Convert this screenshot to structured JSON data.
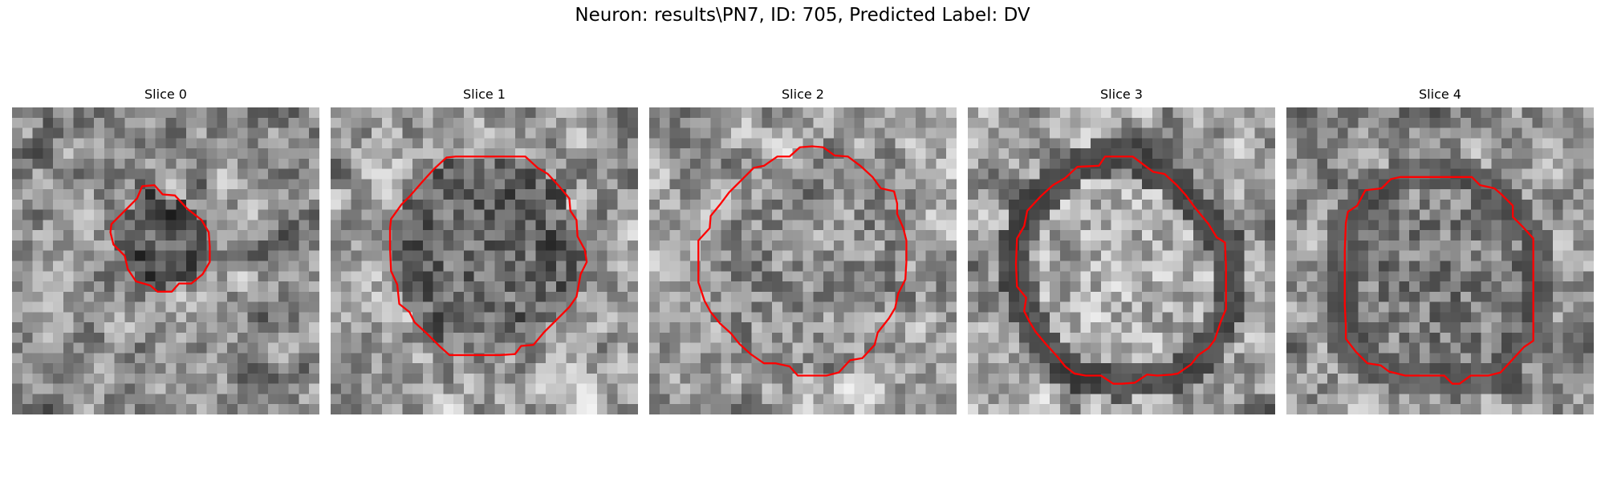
{
  "figure": {
    "title": "Neuron: results\\PN7, ID: 705, Predicted Label: DV",
    "contour_color": "#ff0000"
  },
  "panels": [
    {
      "title": "Slice 0",
      "seed": 11,
      "base": 0.55,
      "center_tone": 0.22,
      "ring_tone": null
    },
    {
      "title": "Slice 1",
      "seed": 23,
      "base": 0.62,
      "center_tone": 0.3,
      "ring_tone": null
    },
    {
      "title": "Slice 2",
      "seed": 37,
      "base": 0.62,
      "center_tone": 0.52,
      "ring_tone": null
    },
    {
      "title": "Slice 3",
      "seed": 41,
      "base": 0.62,
      "center_tone": 0.7,
      "ring_tone": 0.12
    },
    {
      "title": "Slice 4",
      "seed": 53,
      "base": 0.58,
      "center_tone": 0.45,
      "ring_tone": 0.25
    }
  ]
}
